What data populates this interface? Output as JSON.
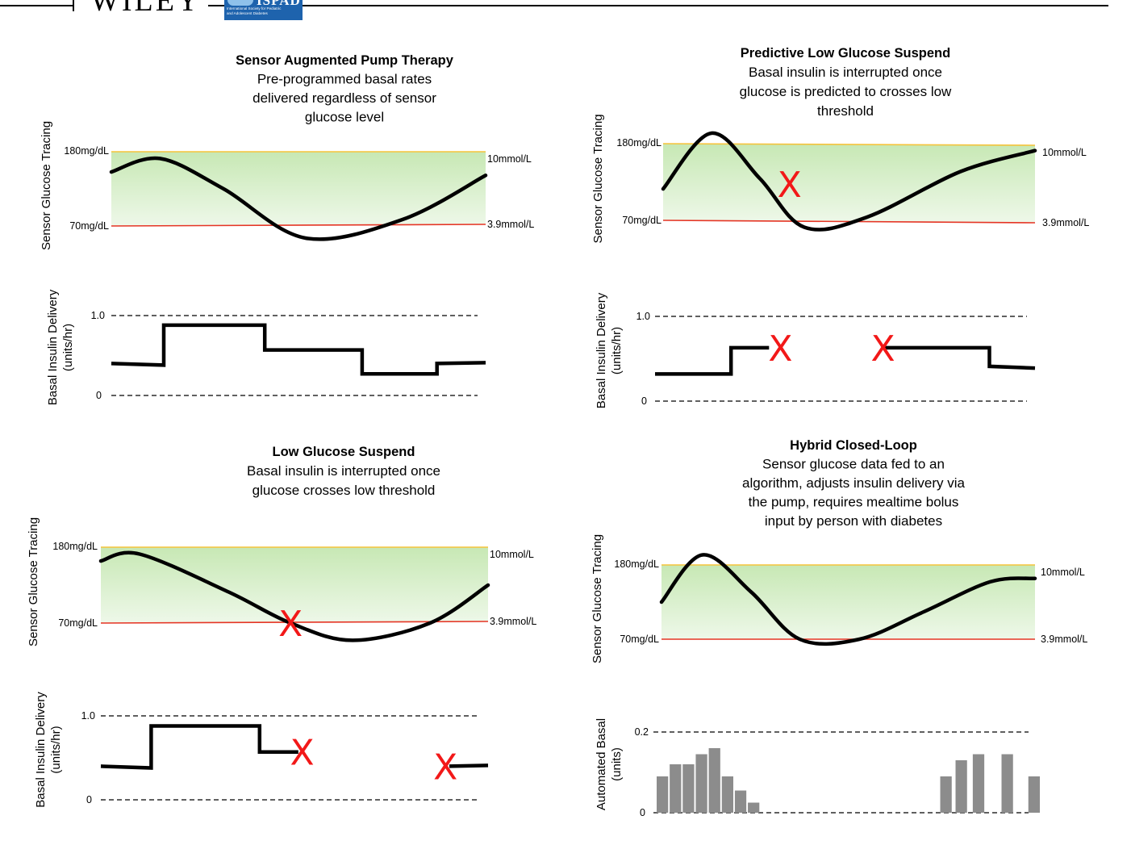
{
  "header": {
    "publisher": "WILEY",
    "logo_name": "ISPAD",
    "logo_line1": "International Society for Pediatric",
    "logo_line2": "and Adolescent Diabetes"
  },
  "colors": {
    "target_fill_top": "#c7e8b4",
    "target_fill_bottom": "#eef8e9",
    "upper_line": "#f5c33b",
    "lower_line": "#e53525",
    "curve": "#000000",
    "x_mark": "#f21818",
    "bar": "#8c8c8c"
  },
  "panels": [
    {
      "id": "sap",
      "title": "Sensor Augmented Pump Therapy",
      "desc": [
        "Pre-programmed basal rates",
        "delivered regardless of sensor",
        "glucose level"
      ],
      "glucose": {
        "ylabel": "Sensor Glucose Tracing",
        "upper_left": "180mg/dL",
        "upper_right": "10mmol/L",
        "lower_left": "70mg/dL",
        "lower_right": "3.9mmol/L",
        "upper_value": 180,
        "lower_value": 70,
        "curve": [
          [
            0,
            150
          ],
          [
            0.13,
            170
          ],
          [
            0.3,
            125
          ],
          [
            0.52,
            52
          ],
          [
            0.78,
            80
          ],
          [
            1,
            145
          ]
        ],
        "x_marks": []
      },
      "insulin": {
        "ylabel_lines": [
          "Basal Insulin Delivery",
          "(units/hr)"
        ],
        "top_tick": "1.0",
        "bottom_tick": "0",
        "top_value": 1.0,
        "type": "step",
        "segments": [
          [
            [
              0,
              0.4
            ],
            [
              0.14,
              0.38
            ],
            [
              0.14,
              0.88
            ],
            [
              0.41,
              0.88
            ],
            [
              0.41,
              0.57
            ],
            [
              0.67,
              0.57
            ],
            [
              0.67,
              0.27
            ],
            [
              0.87,
              0.27
            ],
            [
              0.87,
              0.4
            ],
            [
              1,
              0.41
            ]
          ]
        ],
        "x_marks": []
      }
    },
    {
      "id": "plgs",
      "title": "Predictive Low Glucose Suspend",
      "desc": [
        "Basal insulin is interrupted once",
        "glucose is predicted to crosses low",
        "threshold"
      ],
      "glucose": {
        "ylabel": "Sensor Glucose Tracing",
        "upper_left": "180mg/dL",
        "upper_right": "10mmol/L",
        "lower_left": "70mg/dL",
        "lower_right": "3.9mmol/L",
        "upper_value": 180,
        "lower_value": 70,
        "curve": [
          [
            0,
            115
          ],
          [
            0.13,
            195
          ],
          [
            0.26,
            130
          ],
          [
            0.38,
            60
          ],
          [
            0.55,
            75
          ],
          [
            0.8,
            140
          ],
          [
            1,
            170
          ]
        ],
        "x_marks": [
          [
            0.34,
            122
          ]
        ]
      },
      "insulin": {
        "ylabel_lines": [
          "Basal Insulin Delivery",
          "(units/hr)"
        ],
        "top_tick": "1.0",
        "bottom_tick": "0",
        "top_value": 1.0,
        "type": "step",
        "segments": [
          [
            [
              0,
              0.32
            ],
            [
              0.2,
              0.32
            ],
            [
              0.2,
              0.63
            ],
            [
              0.3,
              0.63
            ]
          ],
          [
            [
              0.6,
              0.63
            ],
            [
              0.88,
              0.63
            ],
            [
              0.88,
              0.41
            ],
            [
              1,
              0.39
            ]
          ]
        ],
        "x_marks": [
          [
            0.33,
            0.63
          ],
          [
            0.6,
            0.63
          ]
        ]
      }
    },
    {
      "id": "lgs",
      "title": "Low Glucose Suspend",
      "desc": [
        "Basal insulin is interrupted once",
        "glucose crosses low threshold"
      ],
      "glucose": {
        "ylabel": "Sensor Glucose Tracing",
        "upper_left": "180mg/dL",
        "upper_right": "10mmol/L",
        "lower_left": "70mg/dL",
        "lower_right": "3.9mmol/L",
        "upper_value": 180,
        "lower_value": 70,
        "curve": [
          [
            0,
            160
          ],
          [
            0.1,
            170
          ],
          [
            0.33,
            115
          ],
          [
            0.49,
            70
          ],
          [
            0.65,
            45
          ],
          [
            0.85,
            70
          ],
          [
            1,
            125
          ]
        ],
        "x_marks": [
          [
            0.49,
            70
          ]
        ]
      },
      "insulin": {
        "ylabel_lines": [
          "Basal Insulin Delivery",
          "(units/hr)"
        ],
        "top_tick": "1.0",
        "bottom_tick": "0",
        "top_value": 1.0,
        "type": "step",
        "segments": [
          [
            [
              0,
              0.4
            ],
            [
              0.13,
              0.38
            ],
            [
              0.13,
              0.88
            ],
            [
              0.41,
              0.88
            ],
            [
              0.41,
              0.57
            ],
            [
              0.51,
              0.57
            ]
          ],
          [
            [
              0.9,
              0.4
            ],
            [
              1,
              0.41
            ]
          ]
        ],
        "x_marks": [
          [
            0.52,
            0.57
          ],
          [
            0.89,
            0.4
          ]
        ]
      }
    },
    {
      "id": "hcl",
      "title": "Hybrid Closed-Loop",
      "desc": [
        "Sensor glucose data fed to an",
        "algorithm, adjusts insulin delivery via",
        "the pump, requires mealtime bolus",
        "input by person with diabetes"
      ],
      "glucose": {
        "ylabel": "Sensor Glucose Tracing",
        "upper_left": "180mg/dL",
        "upper_right": "10mmol/L",
        "lower_left": "70mg/dL",
        "lower_right": "3.9mmol/L",
        "upper_value": 180,
        "lower_value": 70,
        "curve": [
          [
            0,
            125
          ],
          [
            0.11,
            195
          ],
          [
            0.24,
            140
          ],
          [
            0.37,
            70
          ],
          [
            0.53,
            70
          ],
          [
            0.7,
            110
          ],
          [
            0.88,
            155
          ],
          [
            1,
            160
          ]
        ],
        "x_marks": []
      },
      "insulin": {
        "ylabel_lines": [
          "Automated Basal",
          "(units)"
        ],
        "top_tick": "0.2",
        "bottom_tick": "0",
        "top_value": 0.2,
        "type": "bar",
        "bars": [
          [
            0.0,
            0.09
          ],
          [
            0.034,
            0.12
          ],
          [
            0.068,
            0.12
          ],
          [
            0.102,
            0.145
          ],
          [
            0.136,
            0.16
          ],
          [
            0.17,
            0.09
          ],
          [
            0.204,
            0.055
          ],
          [
            0.238,
            0.025
          ],
          [
            0.74,
            0.09
          ],
          [
            0.78,
            0.13
          ],
          [
            0.825,
            0.145
          ],
          [
            0.9,
            0.145
          ],
          [
            0.97,
            0.09
          ]
        ],
        "x_marks": []
      }
    }
  ]
}
